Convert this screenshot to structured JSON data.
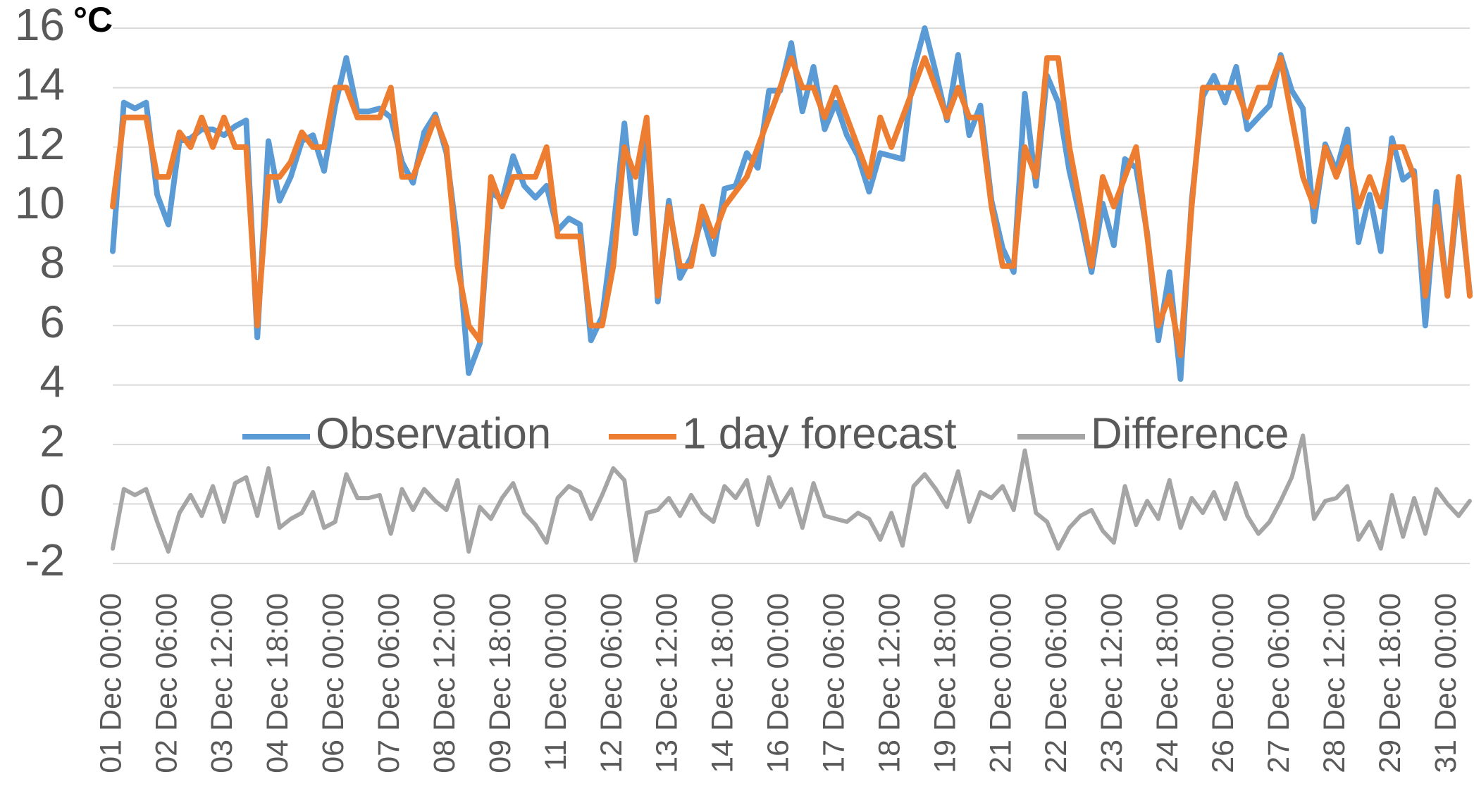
{
  "chart_data": {
    "type": "line",
    "y_label": "°C",
    "ylim": [
      -2,
      16
    ],
    "yticks": [
      -2,
      0,
      2,
      4,
      6,
      8,
      10,
      12,
      14,
      16
    ],
    "grid": true,
    "legend": "center",
    "categories": [
      "01 Dec 00:00",
      null,
      null,
      null,
      null,
      "02 Dec 06:00",
      null,
      null,
      null,
      null,
      "03 Dec 12:00",
      null,
      null,
      null,
      null,
      "04 Dec 18:00",
      null,
      null,
      null,
      null,
      "06 Dec 00:00",
      null,
      null,
      null,
      null,
      "07 Dec 06:00",
      null,
      null,
      null,
      null,
      "08 Dec 12:00",
      null,
      null,
      null,
      null,
      "09 Dec 18:00",
      null,
      null,
      null,
      null,
      "11 Dec 00:00",
      null,
      null,
      null,
      null,
      "12 Dec 06:00",
      null,
      null,
      null,
      null,
      "13 Dec 12:00",
      null,
      null,
      null,
      null,
      "14 Dec 18:00",
      null,
      null,
      null,
      null,
      "16 Dec 00:00",
      null,
      null,
      null,
      null,
      "17 Dec 06:00",
      null,
      null,
      null,
      null,
      "18 Dec 12:00",
      null,
      null,
      null,
      null,
      "19 Dec 18:00",
      null,
      null,
      null,
      null,
      "21 Dec 00:00",
      null,
      null,
      null,
      null,
      "22 Dec 06:00",
      null,
      null,
      null,
      null,
      "23 Dec 12:00",
      null,
      null,
      null,
      null,
      "24 Dec 18:00",
      null,
      null,
      null,
      null,
      "26 Dec 00:00",
      null,
      null,
      null,
      null,
      "27 Dec 06:00",
      null,
      null,
      null,
      null,
      "28 Dec 12:00",
      null,
      null,
      null,
      null,
      "29 Dec 18:00",
      null,
      null,
      null,
      null,
      "31 Dec 00:00",
      null,
      null
    ],
    "series": [
      {
        "name": "Observation",
        "color": "#5b9bd5",
        "values": [
          8.5,
          13.5,
          13.3,
          13.5,
          10.4,
          9.4,
          12.2,
          12.3,
          12.6,
          12.6,
          12.4,
          12.7,
          12.9,
          5.6,
          12.2,
          10.2,
          11,
          12.2,
          12.4,
          11.2,
          13.4,
          15,
          13.2,
          13.2,
          13.3,
          13,
          11.5,
          10.8,
          12.5,
          13.1,
          11.8,
          8.8,
          4.4,
          5.4,
          10.5,
          10.2,
          11.7,
          10.7,
          10.3,
          10.7,
          9.2,
          9.6,
          9.4,
          5.5,
          6.3,
          9.2,
          12.8,
          9.1,
          12.7,
          6.8,
          10.2,
          7.6,
          8.3,
          9.7,
          8.4,
          10.6,
          10.7,
          11.8,
          11.3,
          13.9,
          13.9,
          15.5,
          13.2,
          14.7,
          12.6,
          13.5,
          12.4,
          11.7,
          10.5,
          11.8,
          11.7,
          11.6,
          14.6,
          16,
          14.5,
          12.9,
          15.1,
          12.4,
          13.4,
          10.2,
          8.6,
          7.8,
          13.8,
          10.7,
          14.4,
          13.5,
          11.2,
          9.6,
          7.8,
          10.1,
          8.7,
          11.6,
          11.3,
          9.1,
          5.5,
          7.8,
          4.2,
          10.2,
          13.7,
          14.4,
          13.5,
          14.7,
          12.6,
          13,
          13.4,
          15.1,
          13.9,
          13.3,
          9.5,
          12.1,
          11.2,
          12.6,
          8.8,
          10.4,
          8.5,
          12.3,
          10.9,
          11.2,
          6,
          10.5,
          7,
          10.6,
          7.1
        ]
      },
      {
        "name": "1 day forecast",
        "color": "#ed7d31",
        "values": [
          10,
          13,
          13,
          13,
          11,
          11,
          12.5,
          12,
          13,
          12,
          13,
          12,
          12,
          6,
          11,
          11,
          11.5,
          12.5,
          12,
          12,
          14,
          14,
          13,
          13,
          13,
          14,
          11,
          11,
          12,
          13,
          12,
          8,
          6,
          5.5,
          11,
          10,
          11,
          11,
          11,
          12,
          9,
          9,
          9,
          6,
          6,
          8,
          12,
          11,
          13,
          7,
          10,
          8,
          8,
          10,
          9,
          10,
          10.5,
          11,
          12,
          13,
          14,
          15,
          14,
          14,
          13,
          14,
          13,
          12,
          11,
          13,
          12,
          13,
          14,
          15,
          14,
          13,
          14,
          13,
          13,
          10,
          8,
          8,
          12,
          11,
          15,
          15,
          12,
          10,
          8,
          11,
          10,
          11,
          12,
          9,
          6,
          7,
          5,
          10,
          14,
          14,
          14,
          14,
          13,
          14,
          14,
          15,
          13,
          11,
          10,
          12,
          11,
          12,
          10,
          11,
          10,
          12,
          12,
          11,
          7,
          10,
          7,
          11,
          7
        ]
      },
      {
        "name": "Difference",
        "color": "#a5a5a5",
        "values": [
          -1.5,
          0.5,
          0.3,
          0.5,
          -0.6,
          -1.6,
          -0.3,
          0.3,
          -0.4,
          0.6,
          -0.6,
          0.7,
          0.9,
          -0.4,
          1.2,
          -0.8,
          -0.5,
          -0.3,
          0.4,
          -0.8,
          -0.6,
          1,
          0.2,
          0.2,
          0.3,
          -1,
          0.5,
          -0.2,
          0.5,
          0.1,
          -0.2,
          0.8,
          -1.6,
          -0.1,
          -0.5,
          0.2,
          0.7,
          -0.3,
          -0.7,
          -1.3,
          0.2,
          0.6,
          0.4,
          -0.5,
          0.3,
          1.2,
          0.8,
          -1.9,
          -0.3,
          -0.2,
          0.2,
          -0.4,
          0.3,
          -0.3,
          -0.6,
          0.6,
          0.2,
          0.8,
          -0.7,
          0.9,
          -0.1,
          0.5,
          -0.8,
          0.7,
          -0.4,
          -0.5,
          -0.6,
          -0.3,
          -0.5,
          -1.2,
          -0.3,
          -1.4,
          0.6,
          1,
          0.5,
          -0.1,
          1.1,
          -0.6,
          0.4,
          0.2,
          0.6,
          -0.2,
          1.8,
          -0.3,
          -0.6,
          -1.5,
          -0.8,
          -0.4,
          -0.2,
          -0.9,
          -1.3,
          0.6,
          -0.7,
          0.1,
          -0.5,
          0.8,
          -0.8,
          0.2,
          -0.3,
          0.4,
          -0.5,
          0.7,
          -0.4,
          -1,
          -0.6,
          0.1,
          0.9,
          2.3,
          -0.5,
          0.1,
          0.2,
          0.6,
          -1.2,
          -0.6,
          -1.5,
          0.3,
          -1.1,
          0.2,
          -1,
          0.5,
          0,
          -0.4,
          0.1
        ]
      }
    ]
  }
}
